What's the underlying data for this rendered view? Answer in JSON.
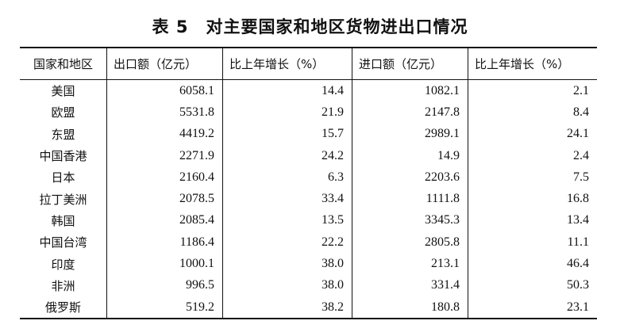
{
  "title": "表 5　对主要国家和地区货物进出口情况",
  "table": {
    "header": [
      "国家和地区",
      "出口额（亿元）",
      "比上年增长（%）",
      "进口额（亿元）",
      "比上年增长（%）"
    ],
    "rows": [
      [
        "美国",
        "6058.1",
        "14.4",
        "1082.1",
        "2.1"
      ],
      [
        "欧盟",
        "5531.8",
        "21.9",
        "2147.8",
        "8.4"
      ],
      [
        "东盟",
        "4419.2",
        "15.7",
        "2989.1",
        "24.1"
      ],
      [
        "中国香港",
        "2271.9",
        "24.2",
        "14.9",
        "2.4"
      ],
      [
        "日本",
        "2160.4",
        "6.3",
        "2203.6",
        "7.5"
      ],
      [
        "拉丁美洲",
        "2078.5",
        "33.4",
        "1111.8",
        "16.8"
      ],
      [
        "韩国",
        "2085.4",
        "13.5",
        "3345.3",
        "13.4"
      ],
      [
        "中国台湾",
        "1186.4",
        "22.2",
        "2805.8",
        "11.1"
      ],
      [
        "印度",
        "1000.1",
        "38.0",
        "213.1",
        "46.4"
      ],
      [
        "非洲",
        "996.5",
        "38.0",
        "331.4",
        "50.3"
      ],
      [
        "俄罗斯",
        "519.2",
        "38.2",
        "180.8",
        "23.1"
      ]
    ]
  }
}
